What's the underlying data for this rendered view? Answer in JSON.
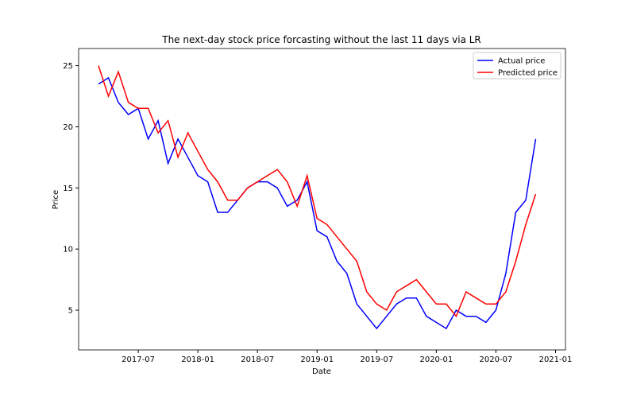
{
  "chart_data": {
    "type": "line",
    "title": "The next-day stock price forcasting without the last 11 days via LR",
    "xlabel": "Date",
    "ylabel": "Price",
    "x": [
      "2017-03",
      "2017-04",
      "2017-05",
      "2017-06",
      "2017-07",
      "2017-08",
      "2017-09",
      "2017-10",
      "2017-11",
      "2017-12",
      "2018-01",
      "2018-02",
      "2018-03",
      "2018-04",
      "2018-05",
      "2018-06",
      "2018-07",
      "2018-08",
      "2018-09",
      "2018-10",
      "2018-11",
      "2018-12",
      "2019-01",
      "2019-02",
      "2019-03",
      "2019-04",
      "2019-05",
      "2019-06",
      "2019-07",
      "2019-08",
      "2019-09",
      "2019-10",
      "2019-11",
      "2019-12",
      "2020-01",
      "2020-02",
      "2020-03",
      "2020-04",
      "2020-05",
      "2020-06",
      "2020-07",
      "2020-08",
      "2020-09",
      "2020-10",
      "2020-11"
    ],
    "series": [
      {
        "name": "Actual price",
        "color": "#0000ff",
        "values": [
          23.5,
          24.0,
          22.0,
          21.0,
          21.5,
          19.0,
          20.5,
          17.0,
          19.0,
          17.5,
          16.0,
          15.5,
          13.0,
          13.0,
          14.0,
          15.0,
          15.5,
          15.5,
          15.0,
          13.5,
          14.0,
          15.5,
          11.5,
          11.0,
          9.0,
          8.0,
          5.5,
          4.5,
          3.5,
          4.5,
          5.5,
          6.0,
          6.0,
          4.5,
          4.0,
          3.5,
          5.0,
          4.5,
          4.5,
          4.0,
          5.0,
          8.0,
          13.0,
          14.0,
          19.0
        ]
      },
      {
        "name": "Predicted price",
        "color": "#ff0000",
        "values": [
          25.0,
          22.5,
          24.5,
          22.0,
          21.5,
          21.5,
          19.5,
          20.5,
          17.5,
          19.5,
          18.0,
          16.5,
          15.5,
          14.0,
          14.0,
          15.0,
          15.5,
          16.0,
          16.5,
          15.5,
          13.5,
          16.0,
          12.5,
          12.0,
          11.0,
          10.0,
          9.0,
          6.5,
          5.5,
          5.0,
          6.5,
          7.0,
          7.5,
          6.5,
          5.5,
          5.5,
          4.5,
          6.5,
          6.0,
          5.5,
          5.5,
          6.5,
          9.0,
          12.0,
          14.5
        ]
      }
    ],
    "xlim": [
      "2017-01",
      "2021-02"
    ],
    "xticks": [
      "2017-07",
      "2018-01",
      "2018-07",
      "2019-01",
      "2019-07",
      "2020-01",
      "2020-07",
      "2021-01"
    ],
    "ylim": [
      1.75,
      26.4
    ],
    "yticks": [
      5,
      10,
      15,
      20,
      25
    ],
    "legend": "upper right"
  }
}
